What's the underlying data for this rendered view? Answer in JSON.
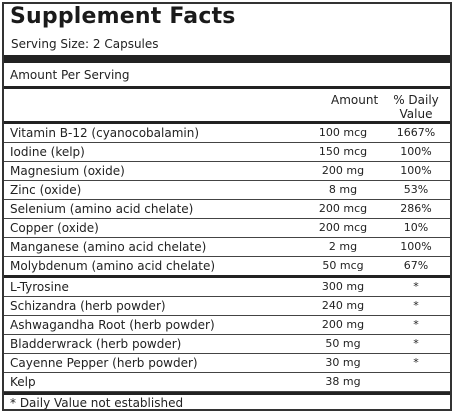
{
  "title": "Supplement Facts",
  "serving_size": "Serving Size: 2 Capsules",
  "amount_per_serving": "Amount Per Serving",
  "columns": {
    "amount": "Amount",
    "daily_value_line1": "% Daily",
    "daily_value_line2": "Value"
  },
  "rows": [
    {
      "name": "Vitamin B-12 (cyanocobalamin)",
      "amount": "100 mcg",
      "dv": "1667%"
    },
    {
      "name": "Iodine (kelp)",
      "amount": "150 mcg",
      "dv": "100%"
    },
    {
      "name": "Magnesium (oxide)",
      "amount": "200 mg",
      "dv": "100%"
    },
    {
      "name": "Zinc (oxide)",
      "amount": "8 mg",
      "dv": "53%"
    },
    {
      "name": "Selenium (amino acid chelate)",
      "amount": "200 mcg",
      "dv": "286%"
    },
    {
      "name": "Copper (oxide)",
      "amount": "200 mcg",
      "dv": "10%"
    },
    {
      "name": "Manganese (amino acid chelate)",
      "amount": "2 mg",
      "dv": "100%"
    },
    {
      "name": "Molybdenum (amino acid chelate)",
      "amount": "50 mcg",
      "dv": "67%"
    },
    {
      "name": "L-Tyrosine",
      "amount": "300 mg",
      "dv": "*"
    },
    {
      "name": "Schizandra (herb powder)",
      "amount": "240 mg",
      "dv": "*"
    },
    {
      "name": "Ashwagandha Root (herb powder)",
      "amount": "200 mg",
      "dv": "*"
    },
    {
      "name": "Bladderwrack (herb powder)",
      "amount": "50 mg",
      "dv": "*"
    },
    {
      "name": "Cayenne Pepper (herb powder)",
      "amount": "30 mg",
      "dv": "*"
    },
    {
      "name": "Kelp",
      "amount": "38 mg",
      "dv": ""
    }
  ],
  "footnote": "* Daily Value not established"
}
